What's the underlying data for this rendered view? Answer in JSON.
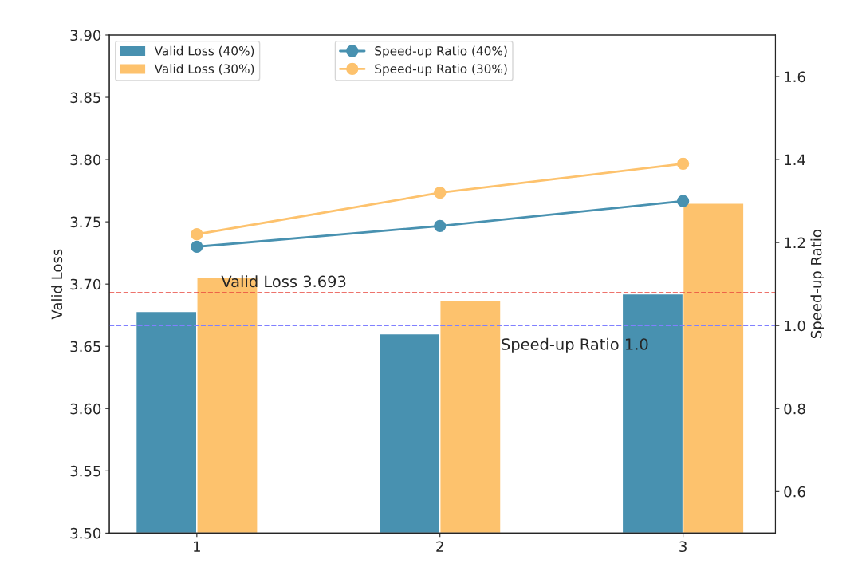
{
  "chart_data": {
    "type": "bar",
    "ylabel": "Valid Loss",
    "y2label": "Speed-up Ratio",
    "x": [
      1,
      2,
      3
    ],
    "xlim": [
      0.64,
      3.38
    ],
    "xticks": [
      1,
      2,
      3
    ],
    "series": [
      {
        "name": "Valid Loss (40%)",
        "color": "#4891b0",
        "values": [
          3.678,
          3.66,
          3.692
        ]
      },
      {
        "name": "Valid Loss (30%)",
        "color": "#fdc26d",
        "values": [
          3.705,
          3.687,
          3.765
        ]
      },
      {
        "name": "Speed-up Ratio (40%)",
        "type": "line",
        "axis": "y2",
        "color": "#4891b0",
        "values": [
          1.19,
          1.24,
          1.3
        ]
      },
      {
        "name": "Speed-up Ratio (30%)",
        "type": "line",
        "axis": "y2",
        "color": "#fdc26d",
        "values": [
          1.22,
          1.32,
          1.39
        ]
      }
    ],
    "ylim": [
      3.5,
      3.9
    ],
    "yticks": [
      {
        "value": 3.5,
        "label": "3.50"
      },
      {
        "value": 3.55,
        "label": "3.55"
      },
      {
        "value": 3.6,
        "label": "3.60"
      },
      {
        "value": 3.65,
        "label": "3.65"
      },
      {
        "value": 3.7,
        "label": "3.70"
      },
      {
        "value": 3.75,
        "label": "3.75"
      },
      {
        "value": 3.8,
        "label": "3.80"
      },
      {
        "value": 3.85,
        "label": "3.85"
      },
      {
        "value": 3.9,
        "label": "3.90"
      }
    ],
    "y2lim": [
      0.5,
      1.7
    ],
    "y2ticks": [
      0.6,
      0.8,
      {
        "value": 1.0,
        "label": "1.0"
      },
      1.2,
      1.4,
      1.6
    ],
    "ref_lines": [
      {
        "axis": "y",
        "value": 3.693,
        "label": "Valid Loss 3.693",
        "color": "#e8453c",
        "line_style": "dashed"
      },
      {
        "axis": "y2",
        "value": 1.0,
        "label": "Speed-up Ratio 1.0",
        "color": "#8080ff",
        "line_style": "dashed"
      }
    ],
    "marker": "circle",
    "legend": "top left",
    "grid": false
  }
}
